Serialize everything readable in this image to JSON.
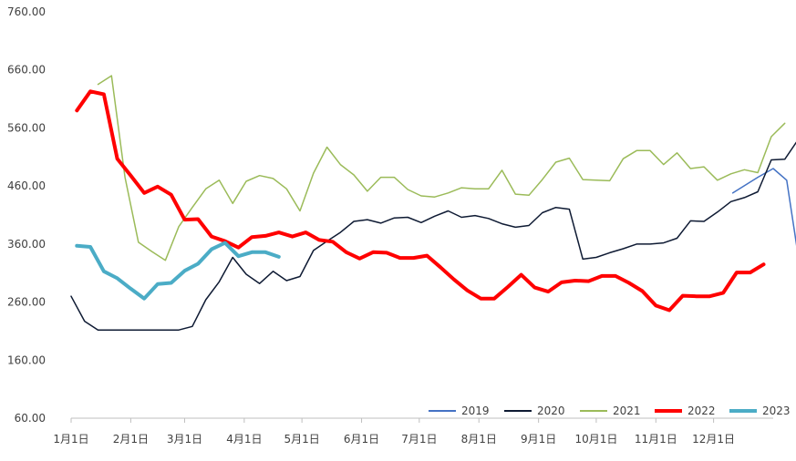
{
  "chart_data": {
    "type": "line",
    "title": "",
    "xlabel": "",
    "ylabel": "",
    "ylim": [
      60,
      760
    ],
    "y_ticks": [
      "60.00",
      "160.00",
      "260.00",
      "360.00",
      "460.00",
      "560.00",
      "660.00",
      "760.00"
    ],
    "x_ticks": [
      "1月1日",
      "2月1日",
      "3月1日",
      "4月1日",
      "5月1日",
      "6月1日",
      "7月1日",
      "8月1日",
      "9月1日",
      "10月1日",
      "11月1日",
      "12月1日"
    ],
    "legend_position": "bottom-right",
    "grid": false,
    "series": [
      {
        "name": "2019",
        "color": "#4472C4",
        "width": 1.5,
        "points": [
          [
            345,
            448
          ],
          [
            358,
            475
          ],
          [
            366,
            490
          ],
          [
            373,
            470
          ],
          [
            380,
            318
          ]
        ]
      },
      {
        "name": "2020",
        "color": "#0E1A33",
        "width": 1.5,
        "points": [
          [
            1,
            270
          ],
          [
            8,
            227
          ],
          [
            15,
            212
          ],
          [
            22,
            212
          ],
          [
            29,
            212
          ],
          [
            36,
            212
          ],
          [
            43,
            212
          ],
          [
            50,
            212
          ],
          [
            57,
            212
          ],
          [
            64,
            218
          ],
          [
            71,
            264
          ],
          [
            78,
            295
          ],
          [
            85,
            337
          ],
          [
            92,
            308
          ],
          [
            99,
            292
          ],
          [
            106,
            313
          ],
          [
            113,
            297
          ],
          [
            120,
            304
          ],
          [
            127,
            349
          ],
          [
            134,
            365
          ],
          [
            141,
            380
          ],
          [
            148,
            399
          ],
          [
            155,
            402
          ],
          [
            162,
            396
          ],
          [
            169,
            405
          ],
          [
            176,
            406
          ],
          [
            183,
            397
          ],
          [
            190,
            408
          ],
          [
            197,
            417
          ],
          [
            204,
            406
          ],
          [
            211,
            409
          ],
          [
            218,
            404
          ],
          [
            225,
            395
          ],
          [
            232,
            389
          ],
          [
            239,
            392
          ],
          [
            246,
            414
          ],
          [
            253,
            423
          ],
          [
            260,
            420
          ],
          [
            267,
            334
          ],
          [
            274,
            337
          ],
          [
            281,
            345
          ],
          [
            288,
            352
          ],
          [
            295,
            360
          ],
          [
            302,
            360
          ],
          [
            309,
            362
          ],
          [
            316,
            370
          ],
          [
            323,
            400
          ],
          [
            330,
            399
          ],
          [
            337,
            415
          ],
          [
            344,
            433
          ],
          [
            351,
            440
          ],
          [
            358,
            450
          ],
          [
            365,
            505
          ],
          [
            372,
            506
          ],
          [
            379,
            540
          ]
        ]
      },
      {
        "name": "2021",
        "color": "#9BBB59",
        "width": 1.5,
        "points": [
          [
            15,
            635
          ],
          [
            22,
            650
          ],
          [
            29,
            475
          ],
          [
            36,
            363
          ],
          [
            43,
            347
          ],
          [
            50,
            332
          ],
          [
            57,
            390
          ],
          [
            64,
            423
          ],
          [
            71,
            455
          ],
          [
            78,
            470
          ],
          [
            85,
            430
          ],
          [
            92,
            468
          ],
          [
            99,
            478
          ],
          [
            106,
            473
          ],
          [
            113,
            455
          ],
          [
            120,
            417
          ],
          [
            127,
            482
          ],
          [
            134,
            527
          ],
          [
            141,
            497
          ],
          [
            148,
            479
          ],
          [
            155,
            451
          ],
          [
            162,
            475
          ],
          [
            169,
            475
          ],
          [
            176,
            454
          ],
          [
            183,
            443
          ],
          [
            190,
            441
          ],
          [
            197,
            448
          ],
          [
            204,
            457
          ],
          [
            211,
            455
          ],
          [
            218,
            455
          ],
          [
            225,
            487
          ],
          [
            232,
            446
          ],
          [
            239,
            444
          ],
          [
            246,
            471
          ],
          [
            253,
            501
          ],
          [
            260,
            508
          ],
          [
            267,
            471
          ],
          [
            274,
            470
          ],
          [
            281,
            469
          ],
          [
            288,
            507
          ],
          [
            295,
            521
          ],
          [
            302,
            521
          ],
          [
            309,
            497
          ],
          [
            316,
            517
          ],
          [
            323,
            490
          ],
          [
            330,
            493
          ],
          [
            337,
            470
          ],
          [
            344,
            481
          ],
          [
            351,
            488
          ],
          [
            358,
            483
          ],
          [
            365,
            545
          ],
          [
            372,
            568
          ]
        ]
      },
      {
        "name": "2022",
        "color": "#FF0000",
        "width": 4,
        "points": [
          [
            4,
            590
          ],
          [
            11,
            623
          ],
          [
            18,
            618
          ],
          [
            25,
            507
          ],
          [
            32,
            478
          ],
          [
            39,
            448
          ],
          [
            46,
            459
          ],
          [
            53,
            445
          ],
          [
            60,
            402
          ],
          [
            67,
            403
          ],
          [
            74,
            373
          ],
          [
            81,
            365
          ],
          [
            88,
            354
          ],
          [
            95,
            372
          ],
          [
            102,
            374
          ],
          [
            109,
            380
          ],
          [
            116,
            373
          ],
          [
            123,
            380
          ],
          [
            130,
            367
          ],
          [
            137,
            364
          ],
          [
            144,
            346
          ],
          [
            151,
            335
          ],
          [
            158,
            346
          ],
          [
            165,
            345
          ],
          [
            172,
            336
          ],
          [
            179,
            336
          ],
          [
            186,
            340
          ],
          [
            193,
            320
          ],
          [
            200,
            299
          ],
          [
            207,
            280
          ],
          [
            214,
            266
          ],
          [
            221,
            266
          ],
          [
            228,
            286
          ],
          [
            235,
            307
          ],
          [
            242,
            285
          ],
          [
            249,
            278
          ],
          [
            256,
            294
          ],
          [
            263,
            297
          ],
          [
            270,
            296
          ],
          [
            277,
            305
          ],
          [
            284,
            305
          ],
          [
            291,
            293
          ],
          [
            298,
            279
          ],
          [
            305,
            254
          ],
          [
            312,
            246
          ],
          [
            319,
            271
          ],
          [
            326,
            270
          ],
          [
            333,
            270
          ],
          [
            340,
            276
          ],
          [
            347,
            311
          ],
          [
            354,
            311
          ],
          [
            361,
            325
          ]
        ]
      },
      {
        "name": "2023",
        "color": "#4BACC6",
        "width": 4,
        "points": [
          [
            4,
            357
          ],
          [
            11,
            355
          ],
          [
            18,
            313
          ],
          [
            25,
            301
          ],
          [
            32,
            283
          ],
          [
            39,
            266
          ],
          [
            46,
            291
          ],
          [
            53,
            293
          ],
          [
            60,
            314
          ],
          [
            67,
            326
          ],
          [
            74,
            351
          ],
          [
            81,
            362
          ],
          [
            88,
            339
          ],
          [
            95,
            346
          ],
          [
            102,
            346
          ],
          [
            109,
            338
          ]
        ]
      }
    ]
  }
}
